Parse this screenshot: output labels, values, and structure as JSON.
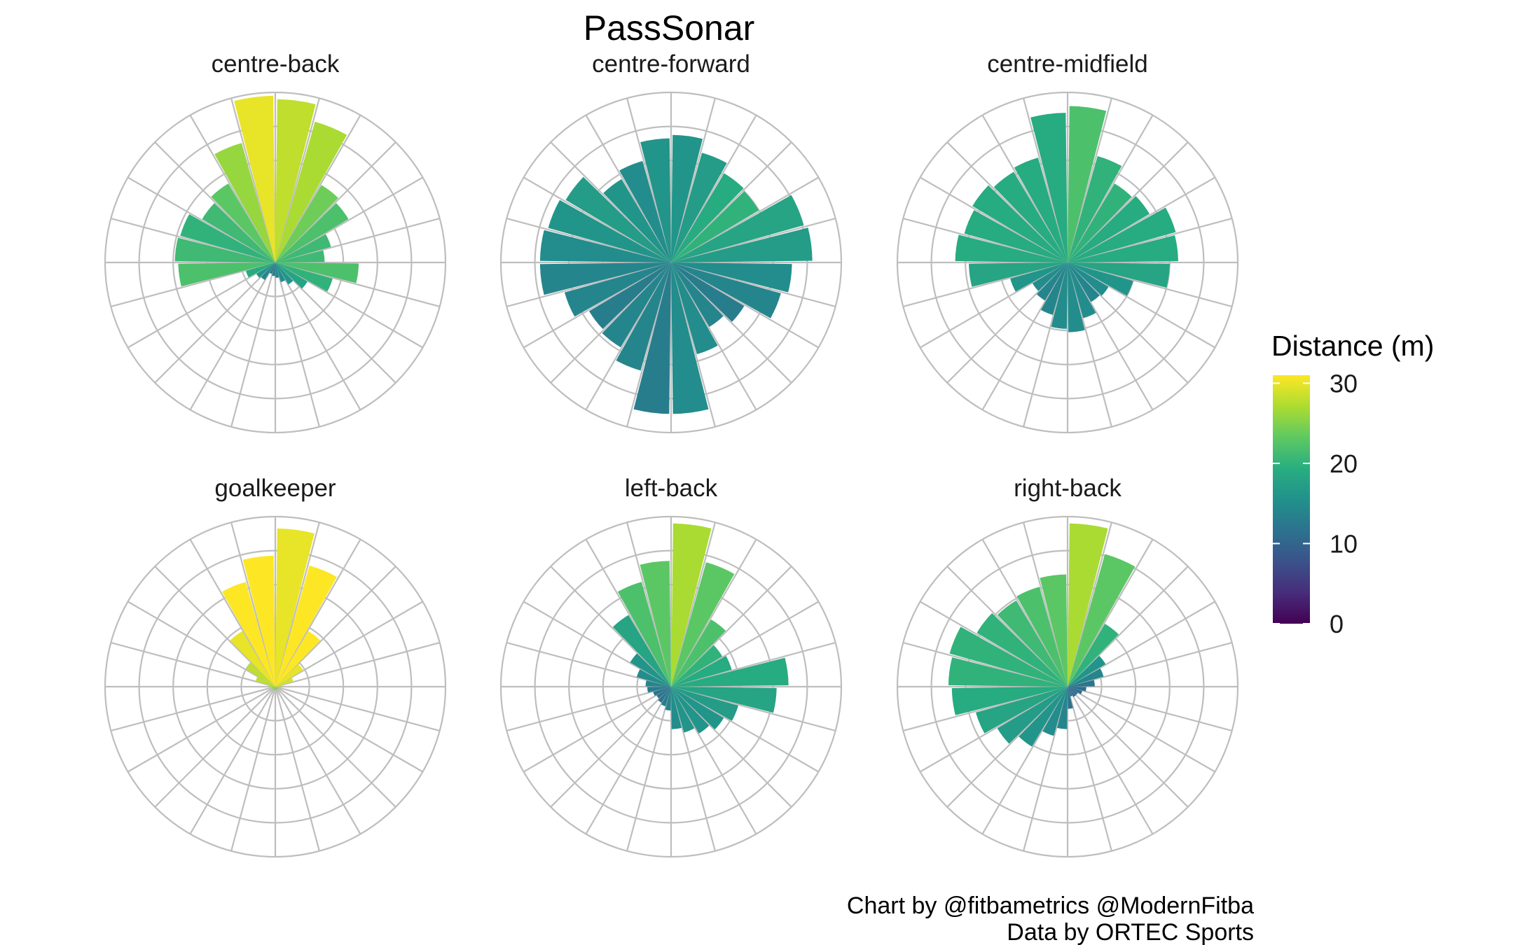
{
  "chart_data": {
    "type": "polar-bar",
    "title": "PassSonar",
    "caption": [
      "Chart by @fitbametrics @ModernFitba",
      "Data by ORTEC Sports"
    ],
    "bin_count": 24,
    "grid": true,
    "legend": {
      "title": "Distance (m)",
      "placement": "right",
      "scale": "viridis",
      "range": [
        0,
        31
      ],
      "ticks": [
        0,
        10,
        20,
        30
      ]
    },
    "panels": [
      {
        "name": "centre-back",
        "bars": [
          {
            "r": 0.96,
            "d": 28
          },
          {
            "r": 0.86,
            "d": 27
          },
          {
            "r": 0.53,
            "d": 24
          },
          {
            "r": 0.5,
            "d": 22
          },
          {
            "r": 0.34,
            "d": 21
          },
          {
            "r": 0.29,
            "d": 21
          },
          {
            "r": 0.49,
            "d": 22
          },
          {
            "r": 0.35,
            "d": 20
          },
          {
            "r": 0.22,
            "d": 18
          },
          {
            "r": 0.15,
            "d": 16
          },
          {
            "r": 0.12,
            "d": 15
          },
          {
            "r": 0.09,
            "d": 14
          },
          {
            "r": 0.08,
            "d": 13
          },
          {
            "r": 0.07,
            "d": 13
          },
          {
            "r": 0.12,
            "d": 14
          },
          {
            "r": 0.13,
            "d": 16
          },
          {
            "r": 0.18,
            "d": 19
          },
          {
            "r": 0.57,
            "d": 22
          },
          {
            "r": 0.59,
            "d": 21
          },
          {
            "r": 0.58,
            "d": 20
          },
          {
            "r": 0.5,
            "d": 21
          },
          {
            "r": 0.54,
            "d": 23
          },
          {
            "r": 0.73,
            "d": 26
          },
          {
            "r": 0.98,
            "d": 30
          }
        ]
      },
      {
        "name": "centre-forward",
        "bars": [
          {
            "r": 0.75,
            "d": 16
          },
          {
            "r": 0.67,
            "d": 17
          },
          {
            "r": 0.61,
            "d": 19
          },
          {
            "r": 0.6,
            "d": 20
          },
          {
            "r": 0.81,
            "d": 18
          },
          {
            "r": 0.83,
            "d": 17
          },
          {
            "r": 0.71,
            "d": 15
          },
          {
            "r": 0.67,
            "d": 14
          },
          {
            "r": 0.5,
            "d": 13
          },
          {
            "r": 0.44,
            "d": 14
          },
          {
            "r": 0.56,
            "d": 15
          },
          {
            "r": 0.89,
            "d": 15
          },
          {
            "r": 0.89,
            "d": 13
          },
          {
            "r": 0.66,
            "d": 14
          },
          {
            "r": 0.58,
            "d": 14
          },
          {
            "r": 0.56,
            "d": 13
          },
          {
            "r": 0.65,
            "d": 14
          },
          {
            "r": 0.77,
            "d": 14
          },
          {
            "r": 0.77,
            "d": 15
          },
          {
            "r": 0.75,
            "d": 16
          },
          {
            "r": 0.72,
            "d": 17
          },
          {
            "r": 0.57,
            "d": 16
          },
          {
            "r": 0.62,
            "d": 15
          },
          {
            "r": 0.73,
            "d": 16
          }
        ]
      },
      {
        "name": "centre-midfield",
        "bars": [
          {
            "r": 0.92,
            "d": 22
          },
          {
            "r": 0.65,
            "d": 20
          },
          {
            "r": 0.54,
            "d": 20
          },
          {
            "r": 0.56,
            "d": 19
          },
          {
            "r": 0.66,
            "d": 19
          },
          {
            "r": 0.65,
            "d": 19
          },
          {
            "r": 0.6,
            "d": 18
          },
          {
            "r": 0.4,
            "d": 16
          },
          {
            "r": 0.28,
            "d": 15
          },
          {
            "r": 0.27,
            "d": 14
          },
          {
            "r": 0.34,
            "d": 15
          },
          {
            "r": 0.41,
            "d": 15
          },
          {
            "r": 0.39,
            "d": 15
          },
          {
            "r": 0.32,
            "d": 14
          },
          {
            "r": 0.26,
            "d": 14
          },
          {
            "r": 0.24,
            "d": 15
          },
          {
            "r": 0.35,
            "d": 16
          },
          {
            "r": 0.58,
            "d": 18
          },
          {
            "r": 0.66,
            "d": 19
          },
          {
            "r": 0.63,
            "d": 19
          },
          {
            "r": 0.65,
            "d": 19
          },
          {
            "r": 0.62,
            "d": 19
          },
          {
            "r": 0.64,
            "d": 19
          },
          {
            "r": 0.88,
            "d": 19
          }
        ]
      },
      {
        "name": "goalkeeper",
        "bars": [
          {
            "r": 0.93,
            "d": 30
          },
          {
            "r": 0.74,
            "d": 31
          },
          {
            "r": 0.38,
            "d": 31
          },
          {
            "r": 0.19,
            "d": 30
          },
          {
            "r": 0.11,
            "d": 29
          },
          {
            "r": 0.03,
            "d": 28
          },
          {
            "r": 0.03,
            "d": 27
          },
          {
            "r": 0.02,
            "d": 26
          },
          {
            "r": 0.02,
            "d": 25
          },
          {
            "r": 0.02,
            "d": 25
          },
          {
            "r": 0.02,
            "d": 25
          },
          {
            "r": 0.02,
            "d": 25
          },
          {
            "r": 0.02,
            "d": 25
          },
          {
            "r": 0.02,
            "d": 25
          },
          {
            "r": 0.02,
            "d": 25
          },
          {
            "r": 0.02,
            "d": 25
          },
          {
            "r": 0.02,
            "d": 26
          },
          {
            "r": 0.02,
            "d": 26
          },
          {
            "r": 0.04,
            "d": 27
          },
          {
            "r": 0.12,
            "d": 28
          },
          {
            "r": 0.2,
            "d": 28
          },
          {
            "r": 0.38,
            "d": 30
          },
          {
            "r": 0.64,
            "d": 31
          },
          {
            "r": 0.77,
            "d": 31
          }
        ]
      },
      {
        "name": "left-back",
        "bars": [
          {
            "r": 0.96,
            "d": 27
          },
          {
            "r": 0.76,
            "d": 23
          },
          {
            "r": 0.46,
            "d": 22
          },
          {
            "r": 0.35,
            "d": 20
          },
          {
            "r": 0.37,
            "d": 19
          },
          {
            "r": 0.69,
            "d": 19
          },
          {
            "r": 0.62,
            "d": 18
          },
          {
            "r": 0.41,
            "d": 17
          },
          {
            "r": 0.36,
            "d": 16
          },
          {
            "r": 0.32,
            "d": 16
          },
          {
            "r": 0.28,
            "d": 16
          },
          {
            "r": 0.25,
            "d": 15
          },
          {
            "r": 0.14,
            "d": 14
          },
          {
            "r": 0.12,
            "d": 13
          },
          {
            "r": 0.11,
            "d": 12
          },
          {
            "r": 0.1,
            "d": 12
          },
          {
            "r": 0.11,
            "d": 12
          },
          {
            "r": 0.14,
            "d": 13
          },
          {
            "r": 0.15,
            "d": 14
          },
          {
            "r": 0.21,
            "d": 15
          },
          {
            "r": 0.28,
            "d": 16
          },
          {
            "r": 0.49,
            "d": 18
          },
          {
            "r": 0.64,
            "d": 22
          },
          {
            "r": 0.74,
            "d": 23
          }
        ]
      },
      {
        "name": "right-back",
        "bars": [
          {
            "r": 0.96,
            "d": 27
          },
          {
            "r": 0.81,
            "d": 23
          },
          {
            "r": 0.43,
            "d": 20
          },
          {
            "r": 0.26,
            "d": 16
          },
          {
            "r": 0.22,
            "d": 14
          },
          {
            "r": 0.16,
            "d": 12
          },
          {
            "r": 0.11,
            "d": 11
          },
          {
            "r": 0.09,
            "d": 11
          },
          {
            "r": 0.07,
            "d": 11
          },
          {
            "r": 0.07,
            "d": 11
          },
          {
            "r": 0.06,
            "d": 11
          },
          {
            "r": 0.13,
            "d": 12
          },
          {
            "r": 0.25,
            "d": 14
          },
          {
            "r": 0.3,
            "d": 15
          },
          {
            "r": 0.41,
            "d": 16
          },
          {
            "r": 0.48,
            "d": 17
          },
          {
            "r": 0.56,
            "d": 18
          },
          {
            "r": 0.68,
            "d": 19
          },
          {
            "r": 0.7,
            "d": 20
          },
          {
            "r": 0.72,
            "d": 20
          },
          {
            "r": 0.62,
            "d": 20
          },
          {
            "r": 0.59,
            "d": 21
          },
          {
            "r": 0.61,
            "d": 22
          },
          {
            "r": 0.66,
            "d": 23
          }
        ]
      }
    ]
  }
}
